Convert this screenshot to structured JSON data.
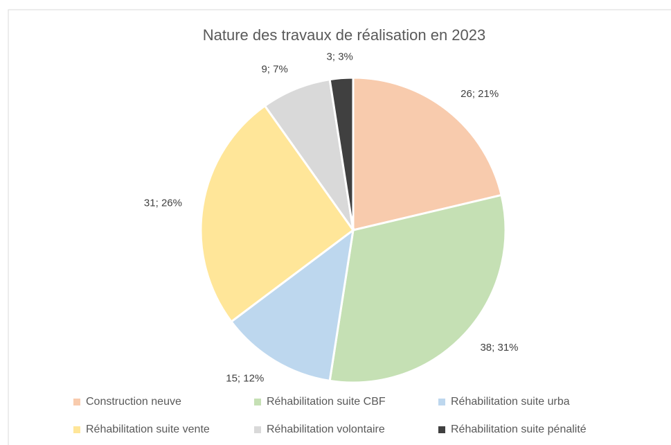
{
  "chart_data": {
    "type": "pie",
    "title": "Nature des travaux de réalisation en 2023",
    "categories": [
      "Construction neuve",
      "Réhabilitation suite CBF",
      "Réhabilitation suite urba",
      "Réhabilitation suite vente",
      "Réhabilitation volontaire",
      "Réhabilitation suite pénalité"
    ],
    "values": [
      26,
      38,
      15,
      31,
      9,
      3
    ],
    "value_labels": [
      "26; 21%",
      "38; 31%",
      "15; 12%",
      "31; 26%",
      "9; 7%",
      "3; 3%"
    ],
    "colors": [
      "#f8cbad",
      "#c5e0b4",
      "#bdd7ee",
      "#ffe699",
      "#d9d9d9",
      "#404040"
    ],
    "legend": "bottom"
  }
}
